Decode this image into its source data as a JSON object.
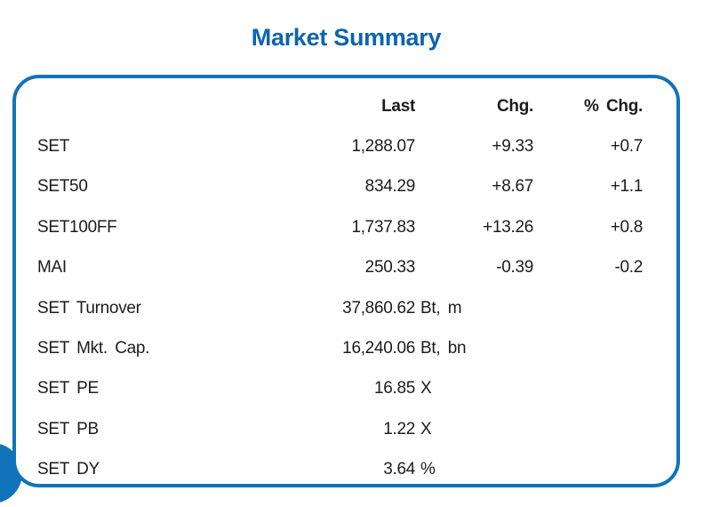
{
  "title": {
    "text": "Market Summary",
    "color": "#0d64b0"
  },
  "card": {
    "border_color": "#1173b9"
  },
  "decor": {
    "corner_circle_color": "#1173b9"
  },
  "table": {
    "headers": {
      "last": "Last",
      "chg": "Chg.",
      "pct_chg": "% Chg."
    },
    "rows": [
      {
        "label": "SET",
        "last": "1,288.07",
        "unit": "",
        "chg": "+9.33",
        "pct_chg": "+0.7"
      },
      {
        "label": "SET50",
        "last": "834.29",
        "unit": "",
        "chg": "+8.67",
        "pct_chg": "+1.1"
      },
      {
        "label": "SET100FF",
        "last": "1,737.83",
        "unit": "",
        "chg": "+13.26",
        "pct_chg": "+0.8"
      },
      {
        "label": "MAI",
        "last": "250.33",
        "unit": "",
        "chg": "-0.39",
        "pct_chg": "-0.2"
      },
      {
        "label": "SET Turnover",
        "last": "37,860.62",
        "unit": "Bt, m",
        "chg": "",
        "pct_chg": ""
      },
      {
        "label": "SET Mkt. Cap.",
        "last": "16,240.06",
        "unit": "Bt, bn",
        "chg": "",
        "pct_chg": ""
      },
      {
        "label": "SET PE",
        "last": "16.85",
        "unit": "X",
        "chg": "",
        "pct_chg": ""
      },
      {
        "label": "SET PB",
        "last": "1.22",
        "unit": "X",
        "chg": "",
        "pct_chg": ""
      },
      {
        "label": "SET DY",
        "last": "3.64",
        "unit": "%",
        "chg": "",
        "pct_chg": ""
      }
    ]
  }
}
